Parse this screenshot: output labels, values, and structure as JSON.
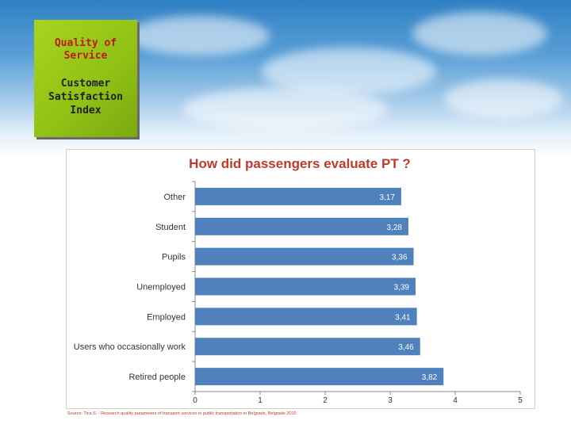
{
  "badge": {
    "line1": "Quality of\nService",
    "line2": "Customer\nSatisfaction\nIndex"
  },
  "chart_data": {
    "type": "bar",
    "orientation": "horizontal",
    "title": "How did passengers evaluate PT ?",
    "categories": [
      "Other",
      "Student",
      "Pupils",
      "Unemployed",
      "Employed",
      "Users who occasionally work",
      "Retired people"
    ],
    "values": [
      3.17,
      3.28,
      3.36,
      3.39,
      3.41,
      3.46,
      3.82
    ],
    "value_labels": [
      "3,17",
      "3,28",
      "3,36",
      "3,39",
      "3,41",
      "3,46",
      "3,82"
    ],
    "xlim": [
      0,
      5
    ],
    "x_ticks": [
      "0",
      "1",
      "2",
      "3",
      "4",
      "5"
    ],
    "bar_color": "#4f81bd",
    "grid": false
  },
  "source": "Source: Tica S. - Research quality parameters of transport services in public transportation in Belgrade, Belgrade 2010"
}
